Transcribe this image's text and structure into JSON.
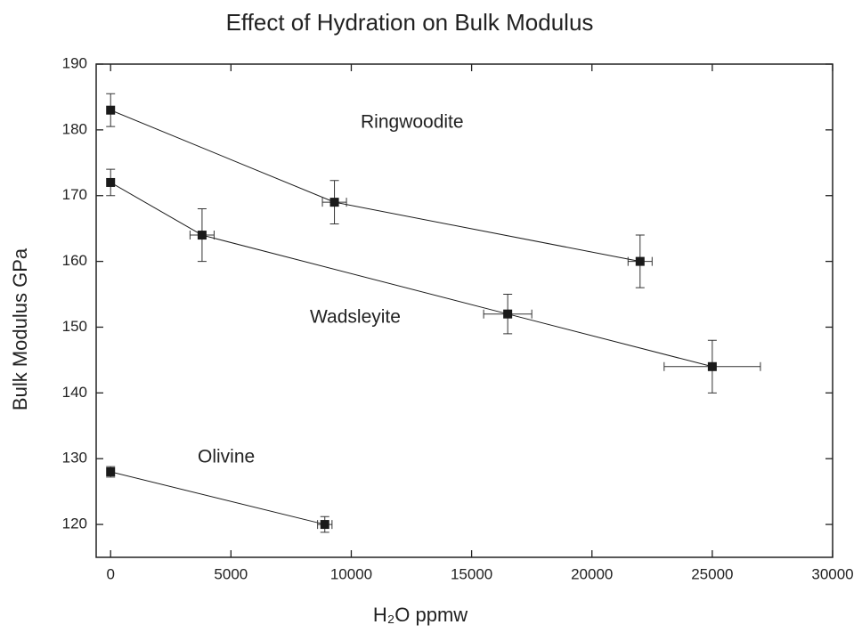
{
  "chart_data": {
    "type": "scatter",
    "title": "Effect of Hydration on Bulk Modulus",
    "xlabel": "H₂O ppmw",
    "ylabel": "Bulk Modulus GPa",
    "xlim": [
      -600,
      30000
    ],
    "xticks": [
      0,
      5000,
      10000,
      15000,
      20000,
      25000,
      30000
    ],
    "ylim": [
      115,
      190
    ],
    "yticks": [
      120,
      130,
      140,
      150,
      160,
      170,
      180,
      190
    ],
    "series": [
      {
        "name": "Ringwoodite",
        "color": "#1a1a1a",
        "x": [
          0,
          9300,
          22000
        ],
        "values": [
          183,
          169,
          160
        ],
        "xerr": [
          0,
          500,
          500
        ],
        "yerr": [
          2.5,
          3.3,
          4
        ]
      },
      {
        "name": "Wadsleyite",
        "color": "#1a1a1a",
        "x": [
          0,
          3800,
          16500,
          25000
        ],
        "values": [
          172,
          164,
          152,
          144
        ],
        "xerr": [
          0,
          500,
          1000,
          2000
        ],
        "yerr": [
          2,
          4,
          3,
          4
        ]
      },
      {
        "name": "Olivine",
        "color": "#1a1a1a",
        "x": [
          0,
          8900
        ],
        "values": [
          128,
          120
        ],
        "xerr": [
          0,
          300
        ],
        "yerr": [
          0.8,
          1.2
        ]
      }
    ]
  }
}
